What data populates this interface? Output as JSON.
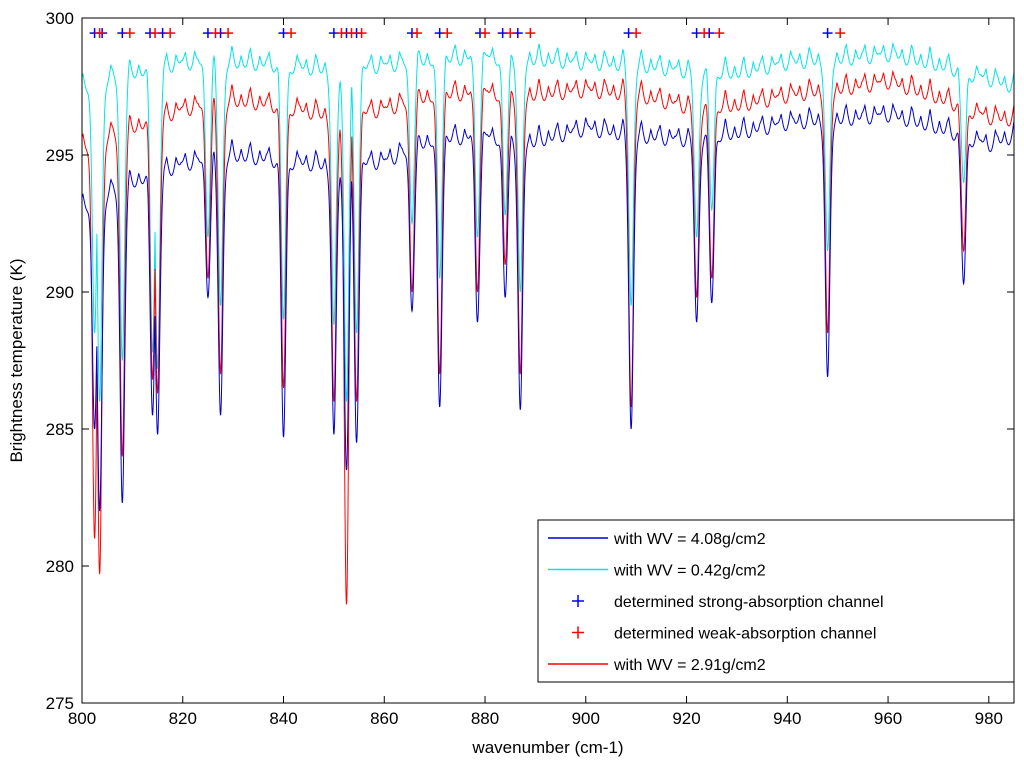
{
  "chart_data": {
    "type": "line",
    "title": "",
    "xlabel": "wavenumber (cm-1)",
    "ylabel": "Brightness temperature (K)",
    "xlim": [
      800,
      985
    ],
    "ylim": [
      275,
      300
    ],
    "xticks": [
      800,
      820,
      840,
      860,
      880,
      900,
      920,
      940,
      960,
      980
    ],
    "yticks": [
      275,
      280,
      285,
      290,
      295,
      300
    ],
    "grid": false,
    "legend_position": "bottom-right",
    "legend": [
      {
        "label": "with WV = 4.08g/cm2",
        "marker": "line",
        "color": "#0000cc"
      },
      {
        "label": "with WV = 0.42g/cm2",
        "marker": "line",
        "color": "#00e5e5"
      },
      {
        "label": "determined strong-absorption channel",
        "marker": "+",
        "color": "#0000ff"
      },
      {
        "label": "determined weak-absorption channel",
        "marker": "+",
        "color": "#ff0000"
      },
      {
        "label": "with WV = 2.91g/cm2",
        "marker": "line",
        "color": "#ff0000"
      }
    ],
    "series": [
      {
        "name": "with WV = 4.08g/cm2",
        "color": "#0000cc",
        "baseline": [
          [
            800,
            293.8
          ],
          [
            810,
            294.6
          ],
          [
            820,
            295.3
          ],
          [
            830,
            295.6
          ],
          [
            840,
            295.4
          ],
          [
            850,
            295.2
          ],
          [
            860,
            295.4
          ],
          [
            870,
            296.2
          ],
          [
            880,
            296.3
          ],
          [
            890,
            296.1
          ],
          [
            900,
            296.6
          ],
          [
            910,
            296.3
          ],
          [
            920,
            296.2
          ],
          [
            930,
            296.4
          ],
          [
            940,
            296.8
          ],
          [
            950,
            296.9
          ],
          [
            960,
            297.1
          ],
          [
            970,
            296.6
          ],
          [
            980,
            296.0
          ],
          [
            985,
            296.3
          ]
        ],
        "dips": [
          [
            802.5,
            285.0
          ],
          [
            803.5,
            282.0
          ],
          [
            808,
            282.3
          ],
          [
            814,
            285.5
          ],
          [
            815,
            284.8
          ],
          [
            825,
            289.8
          ],
          [
            827.5,
            285.5
          ],
          [
            840,
            284.7
          ],
          [
            850,
            284.8
          ],
          [
            852.5,
            283.5
          ],
          [
            854.5,
            284.5
          ],
          [
            865.5,
            289.3
          ],
          [
            871,
            285.8
          ],
          [
            878.5,
            288.9
          ],
          [
            884,
            289.8
          ],
          [
            887,
            285.7
          ],
          [
            909,
            285.0
          ],
          [
            922,
            288.9
          ],
          [
            925,
            289.6
          ],
          [
            948,
            286.9
          ],
          [
            975,
            290.3
          ]
        ]
      },
      {
        "name": "with WV = 0.42g/cm2",
        "color": "#00e5e5",
        "baseline": [
          [
            800,
            298.2
          ],
          [
            810,
            298.6
          ],
          [
            820,
            299.0
          ],
          [
            830,
            299.0
          ],
          [
            840,
            298.9
          ],
          [
            850,
            298.7
          ],
          [
            860,
            298.9
          ],
          [
            870,
            299.1
          ],
          [
            880,
            299.2
          ],
          [
            890,
            299.1
          ],
          [
            900,
            299.0
          ],
          [
            910,
            298.9
          ],
          [
            920,
            298.7
          ],
          [
            930,
            298.6
          ],
          [
            940,
            299.0
          ],
          [
            950,
            299.1
          ],
          [
            960,
            299.3
          ],
          [
            970,
            298.9
          ],
          [
            980,
            298.4
          ],
          [
            985,
            298.1
          ]
        ],
        "dips": [
          [
            802.5,
            288.5
          ],
          [
            803.5,
            286.0
          ],
          [
            808,
            287.5
          ],
          [
            814,
            287.8
          ],
          [
            815,
            287.2
          ],
          [
            825,
            292.0
          ],
          [
            827.5,
            289.5
          ],
          [
            840,
            289.0
          ],
          [
            850,
            288.8
          ],
          [
            852.5,
            286.0
          ],
          [
            854.5,
            288.5
          ],
          [
            865.5,
            292.5
          ],
          [
            871,
            290.5
          ],
          [
            878.5,
            292.0
          ],
          [
            884,
            292.8
          ],
          [
            887,
            290.0
          ],
          [
            909,
            289.5
          ],
          [
            922,
            292.0
          ],
          [
            925,
            293.0
          ],
          [
            948,
            291.5
          ],
          [
            975,
            294.0
          ]
        ]
      },
      {
        "name": "with WV = 2.91g/cm2",
        "color": "#ff0000",
        "baseline": [
          [
            800,
            296.0
          ],
          [
            810,
            296.6
          ],
          [
            820,
            297.3
          ],
          [
            830,
            297.6
          ],
          [
            840,
            297.4
          ],
          [
            850,
            297.0
          ],
          [
            860,
            297.3
          ],
          [
            870,
            297.8
          ],
          [
            880,
            297.9
          ],
          [
            890,
            297.8
          ],
          [
            900,
            298.0
          ],
          [
            910,
            297.8
          ],
          [
            920,
            297.4
          ],
          [
            930,
            297.4
          ],
          [
            940,
            297.8
          ],
          [
            950,
            298.0
          ],
          [
            960,
            298.3
          ],
          [
            970,
            297.7
          ],
          [
            980,
            297.0
          ],
          [
            985,
            296.9
          ]
        ],
        "dips": [
          [
            802.5,
            281.0
          ],
          [
            803.5,
            279.7
          ],
          [
            808,
            284.0
          ],
          [
            814,
            286.8
          ],
          [
            815,
            286.3
          ],
          [
            825,
            290.5
          ],
          [
            827.5,
            287.0
          ],
          [
            840,
            286.5
          ],
          [
            850,
            286.0
          ],
          [
            852.5,
            278.6
          ],
          [
            854.5,
            286.0
          ],
          [
            865.5,
            290.0
          ],
          [
            871,
            287.0
          ],
          [
            878.5,
            290.0
          ],
          [
            884,
            291.0
          ],
          [
            887,
            287.0
          ],
          [
            909,
            285.8
          ],
          [
            922,
            289.8
          ],
          [
            925,
            290.5
          ],
          [
            948,
            288.5
          ],
          [
            975,
            291.5
          ]
        ]
      }
    ],
    "channels_strong": [
      802.5,
      804,
      808,
      813.5,
      816,
      825,
      827.5,
      840,
      850,
      852.5,
      854.5,
      865.5,
      871,
      879,
      883.5,
      886.5,
      908.5,
      922,
      924.5,
      948
    ],
    "channels_weak": [
      803.5,
      809.5,
      814.5,
      817.5,
      826.5,
      829,
      841.5,
      851.5,
      853.5,
      855.5,
      866.5,
      872.5,
      880,
      885,
      889,
      910,
      923.5,
      926.5,
      950.5
    ],
    "channel_marker_y": 299.45
  }
}
